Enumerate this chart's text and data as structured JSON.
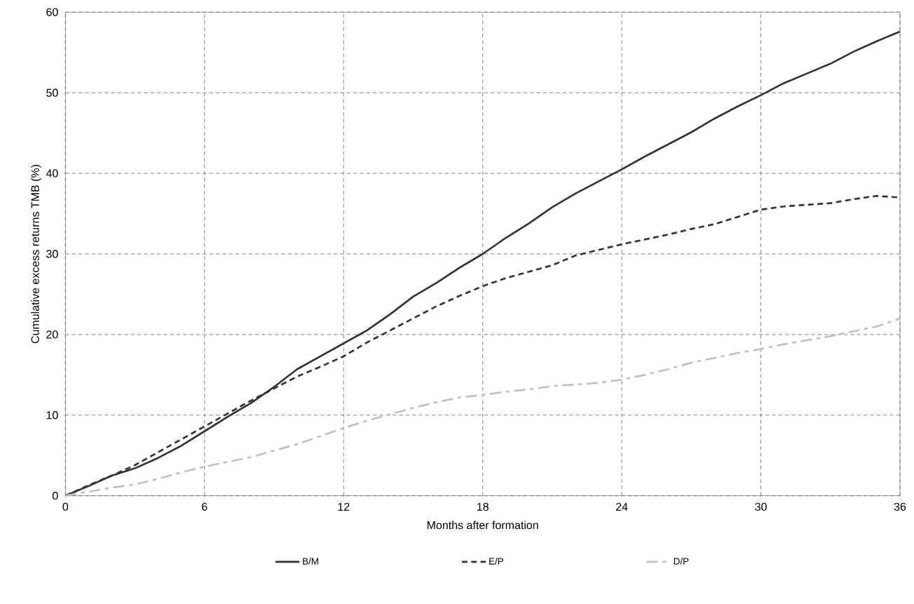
{
  "chart_data": {
    "type": "line",
    "xlabel": "Months after formation",
    "ylabel": "Cumulative excess returns TMB (%)",
    "x": [
      0,
      1,
      2,
      3,
      4,
      5,
      6,
      7,
      8,
      9,
      10,
      11,
      12,
      13,
      14,
      15,
      16,
      17,
      18,
      19,
      20,
      21,
      22,
      23,
      24,
      25,
      26,
      27,
      28,
      29,
      30,
      31,
      32,
      33,
      34,
      35,
      36
    ],
    "series": [
      {
        "name": "B/M",
        "color": "#333333",
        "line_style": "solid",
        "values": [
          0,
          1.2,
          2.5,
          3.4,
          4.7,
          6.2,
          8.0,
          9.8,
          11.5,
          13.5,
          15.7,
          17.3,
          18.9,
          20.5,
          22.5,
          24.7,
          26.4,
          28.3,
          30.0,
          32.0,
          33.8,
          35.8,
          37.5,
          39.0,
          40.5,
          42.1,
          43.6,
          45.1,
          46.8,
          48.3,
          49.7,
          51.2,
          52.4,
          53.6,
          55.1,
          56.4,
          57.6
        ]
      },
      {
        "name": "E/P",
        "color": "#333333",
        "line_style": "dashed",
        "values": [
          0,
          1.3,
          2.5,
          3.8,
          5.4,
          7.0,
          8.6,
          10.2,
          11.8,
          13.3,
          14.8,
          16.0,
          17.3,
          19.0,
          20.5,
          22.0,
          23.5,
          24.8,
          26.0,
          27.0,
          27.8,
          28.6,
          29.8,
          30.5,
          31.2,
          31.8,
          32.4,
          33.1,
          33.7,
          34.6,
          35.5,
          35.9,
          36.1,
          36.3,
          36.8,
          37.2,
          37.0
        ]
      },
      {
        "name": "D/P",
        "color": "#c0c0c0",
        "line_style": "dashdot",
        "values": [
          0,
          0.5,
          1.0,
          1.4,
          2.1,
          2.9,
          3.6,
          4.2,
          4.8,
          5.6,
          6.4,
          7.4,
          8.4,
          9.3,
          10.1,
          10.9,
          11.6,
          12.2,
          12.5,
          12.9,
          13.2,
          13.6,
          13.8,
          14.0,
          14.4,
          15.0,
          15.7,
          16.5,
          17.1,
          17.7,
          18.2,
          18.8,
          19.3,
          19.8,
          20.4,
          21.0,
          22.0
        ]
      }
    ],
    "xlim": [
      0,
      36
    ],
    "xticks": [
      0,
      6,
      12,
      18,
      24,
      30,
      36
    ],
    "ylim": [
      0,
      60
    ],
    "yticks": [
      0,
      10,
      20,
      30,
      40,
      50,
      60
    ],
    "grid": true,
    "legend": "bottom",
    "marker": "none"
  }
}
